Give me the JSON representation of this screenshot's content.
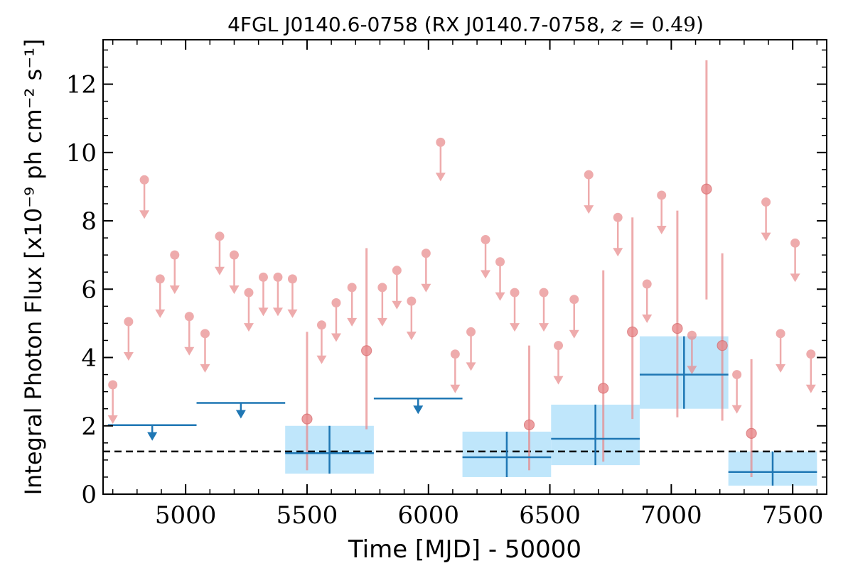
{
  "chart_data": {
    "type": "scatter",
    "title": "4FGL J0140.6-0758 (RX J0140.7-0758, z = 0.49)",
    "title_parts": {
      "prefix": "4FGL J0140.6-0758 (RX J0140.7-0758, ",
      "z_symbol": "z",
      "equals": " = ",
      "z_value": "0.49",
      "suffix": ")"
    },
    "xlabel": "Time [MJD] - 50000",
    "ylabel": "Integral Photon Flux [x10⁻⁹ ph cm⁻² s⁻¹]",
    "xlim": [
      4660,
      7640
    ],
    "ylim": [
      0,
      13.3
    ],
    "xticks": [
      5000,
      5500,
      6000,
      6500,
      7000,
      7500
    ],
    "xtick_labels": [
      "5000",
      "5500",
      "6000",
      "6500",
      "7000",
      "7500"
    ],
    "yticks": [
      0,
      2,
      4,
      6,
      8,
      10,
      12
    ],
    "ytick_labels": [
      "0",
      "2",
      "4",
      "6",
      "8",
      "10",
      "12"
    ],
    "baseline": 1.25,
    "colors": {
      "short_bins": "#e8888a",
      "long_bins": "#1f77b4",
      "error_band": "#bfe6fb",
      "baseline": "#000000"
    },
    "series": [
      {
        "kind": "short-bin-upper-limits",
        "points": [
          {
            "x": 4700,
            "y": 3.2
          },
          {
            "x": 4765,
            "y": 5.05
          },
          {
            "x": 4830,
            "y": 9.2
          },
          {
            "x": 4895,
            "y": 6.3
          },
          {
            "x": 4955,
            "y": 7.0
          },
          {
            "x": 5015,
            "y": 5.2
          },
          {
            "x": 5080,
            "y": 4.7
          },
          {
            "x": 5140,
            "y": 7.55
          },
          {
            "x": 5200,
            "y": 7.0
          },
          {
            "x": 5260,
            "y": 5.9
          },
          {
            "x": 5320,
            "y": 6.35
          },
          {
            "x": 5380,
            "y": 6.35
          },
          {
            "x": 5440,
            "y": 6.3
          },
          {
            "x": 5560,
            "y": 4.95
          },
          {
            "x": 5620,
            "y": 5.6
          },
          {
            "x": 5685,
            "y": 6.05
          },
          {
            "x": 5810,
            "y": 6.05
          },
          {
            "x": 5870,
            "y": 6.55
          },
          {
            "x": 5930,
            "y": 5.65
          },
          {
            "x": 5990,
            "y": 7.05
          },
          {
            "x": 6050,
            "y": 10.3
          },
          {
            "x": 6110,
            "y": 4.1
          },
          {
            "x": 6175,
            "y": 4.75
          },
          {
            "x": 6235,
            "y": 7.45
          },
          {
            "x": 6295,
            "y": 6.8
          },
          {
            "x": 6355,
            "y": 5.9
          },
          {
            "x": 6475,
            "y": 5.9
          },
          {
            "x": 6535,
            "y": 4.35
          },
          {
            "x": 6600,
            "y": 5.7
          },
          {
            "x": 6660,
            "y": 9.35
          },
          {
            "x": 6780,
            "y": 8.1
          },
          {
            "x": 6900,
            "y": 6.15
          },
          {
            "x": 6960,
            "y": 8.75
          },
          {
            "x": 7085,
            "y": 4.65
          },
          {
            "x": 7270,
            "y": 3.5
          },
          {
            "x": 7390,
            "y": 8.55
          },
          {
            "x": 7450,
            "y": 4.7
          },
          {
            "x": 7510,
            "y": 7.35
          },
          {
            "x": 7575,
            "y": 4.1
          }
        ]
      },
      {
        "kind": "short-bin-detections",
        "points": [
          {
            "x": 5500,
            "y": 2.2,
            "ylow": 0.7,
            "yhigh": 4.75
          },
          {
            "x": 5745,
            "y": 4.2,
            "ylow": 1.9,
            "yhigh": 7.2
          },
          {
            "x": 6415,
            "y": 2.03,
            "ylow": 0.7,
            "yhigh": 4.35
          },
          {
            "x": 6720,
            "y": 3.1,
            "ylow": 0.95,
            "yhigh": 6.55
          },
          {
            "x": 6840,
            "y": 4.75,
            "ylow": 2.2,
            "yhigh": 8.1
          },
          {
            "x": 7025,
            "y": 4.85,
            "ylow": 2.25,
            "yhigh": 8.3
          },
          {
            "x": 7145,
            "y": 8.93,
            "ylow": 5.7,
            "yhigh": 12.7
          },
          {
            "x": 7210,
            "y": 4.35,
            "ylow": 2.15,
            "yhigh": 7.05
          },
          {
            "x": 7330,
            "y": 1.78,
            "ylow": 0.5,
            "yhigh": 3.95
          }
        ]
      },
      {
        "kind": "long-bin-upper-limits",
        "points": [
          {
            "x0": 4680,
            "x1": 5045,
            "y": 2.02
          },
          {
            "x0": 5045,
            "x1": 5410,
            "y": 2.67
          },
          {
            "x0": 5775,
            "x1": 6140,
            "y": 2.8
          }
        ]
      },
      {
        "kind": "long-bin-detections",
        "points": [
          {
            "x0": 5410,
            "x1": 5775,
            "y": 1.2,
            "ylow": 0.6,
            "yhigh": 2.0
          },
          {
            "x0": 6140,
            "x1": 6505,
            "y": 1.08,
            "ylow": 0.5,
            "yhigh": 1.83
          },
          {
            "x0": 6505,
            "x1": 6870,
            "y": 1.62,
            "ylow": 0.85,
            "yhigh": 2.62
          },
          {
            "x0": 6870,
            "x1": 7235,
            "y": 3.5,
            "ylow": 2.5,
            "yhigh": 4.62
          },
          {
            "x0": 7235,
            "x1": 7600,
            "y": 0.65,
            "ylow": 0.25,
            "yhigh": 1.25
          }
        ]
      }
    ]
  }
}
